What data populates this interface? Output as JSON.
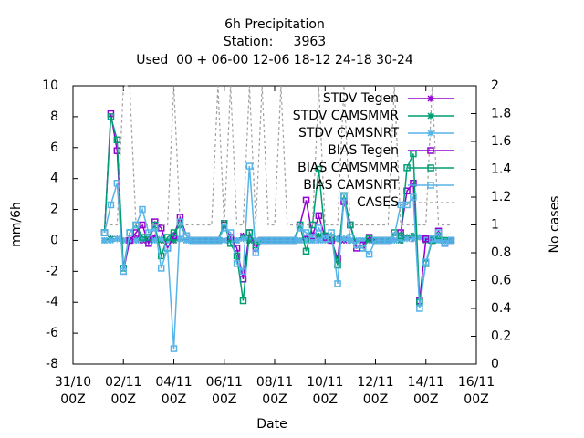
{
  "chart_data": {
    "type": "line",
    "title": [
      "6h Precipitation",
      "Station:     3963",
      "Used  00 + 06-00 12-06 18-12 24-18 30-24"
    ],
    "xlabel": "Date",
    "ylabel": "mm/6h",
    "y2label": "No cases",
    "xlim": [
      0,
      16
    ],
    "xticks": [
      {
        "value": 0,
        "label": [
          "31/10",
          "00Z"
        ]
      },
      {
        "value": 2,
        "label": [
          "02/11",
          "00Z"
        ]
      },
      {
        "value": 4,
        "label": [
          "04/11",
          "00Z"
        ]
      },
      {
        "value": 6,
        "label": [
          "06/11",
          "00Z"
        ]
      },
      {
        "value": 8,
        "label": [
          "08/11",
          "00Z"
        ]
      },
      {
        "value": 10,
        "label": [
          "10/11",
          "00Z"
        ]
      },
      {
        "value": 12,
        "label": [
          "12/11",
          "00Z"
        ]
      },
      {
        "value": 14,
        "label": [
          "14/11",
          "00Z"
        ]
      },
      {
        "value": 16,
        "label": [
          "16/11",
          "00Z"
        ]
      }
    ],
    "ylim": [
      -8,
      10
    ],
    "yticks": [
      -8,
      -6,
      -4,
      -2,
      0,
      2,
      4,
      6,
      8,
      10
    ],
    "y2lim": [
      0,
      2
    ],
    "y2ticks": [
      0,
      0.2,
      0.4,
      0.6,
      0.8,
      1,
      1.2,
      1.4,
      1.6,
      1.8,
      2
    ],
    "grid": false,
    "legend": "top-right",
    "x": [
      1.25,
      1.5,
      1.75,
      2.0,
      2.25,
      2.5,
      2.75,
      3.0,
      3.25,
      3.5,
      3.75,
      4.0,
      4.25,
      4.5,
      4.75,
      5.0,
      5.25,
      5.5,
      5.75,
      6.0,
      6.25,
      6.5,
      6.75,
      7.0,
      7.25,
      7.5,
      7.75,
      8.0,
      8.25,
      8.5,
      8.75,
      9.0,
      9.25,
      9.5,
      9.75,
      10.0,
      10.25,
      10.5,
      10.75,
      11.0,
      11.25,
      11.5,
      11.75,
      12.0,
      12.25,
      12.5,
      12.75,
      13.0,
      13.25,
      13.5,
      13.75,
      14.0,
      14.25,
      14.5,
      14.75,
      15.0
    ],
    "series": [
      {
        "name": "STDV Tegen",
        "color": "#9400d3",
        "marker": "star",
        "values": [
          0,
          0.1,
          0.1,
          0,
          0,
          0.1,
          0,
          0,
          0.2,
          0,
          0,
          0,
          0.1,
          0,
          0,
          0,
          0,
          0,
          0,
          0,
          0,
          0,
          0.3,
          0,
          0,
          0,
          0,
          0,
          0,
          0,
          0,
          0,
          0.2,
          0,
          0,
          0,
          0,
          0.1,
          0,
          0,
          0,
          0,
          0,
          0,
          0,
          0,
          0,
          0,
          0.2,
          0.1,
          0.2,
          0,
          0,
          0,
          0,
          0
        ]
      },
      {
        "name": "STDV CAMSMMR",
        "color": "#009e73",
        "marker": "star",
        "values": [
          0,
          0.1,
          0.1,
          0,
          0,
          0,
          0.1,
          0,
          0,
          0,
          0,
          0,
          0.1,
          0,
          0,
          0,
          0,
          0,
          0,
          0,
          0,
          0,
          0.2,
          0,
          0,
          0,
          0,
          0,
          0,
          0,
          0,
          0,
          0,
          0,
          0.3,
          0,
          0,
          0.1,
          0.1,
          0,
          0,
          0,
          0,
          0,
          0,
          0,
          0,
          0,
          0.2,
          0.3,
          0.2,
          0,
          0,
          0,
          0,
          0
        ]
      },
      {
        "name": "STDV CAMSNRT",
        "color": "#56b4e9",
        "marker": "star",
        "values": [
          0,
          0,
          0.1,
          0,
          0,
          0,
          0.1,
          0,
          0,
          0.1,
          0,
          0.3,
          0.1,
          0,
          0,
          0,
          0,
          0,
          0,
          0,
          0,
          0,
          0.1,
          0.2,
          0,
          0,
          0,
          0,
          0,
          0,
          0,
          0,
          0,
          0,
          0,
          0,
          0,
          0.1,
          0.1,
          0,
          0,
          0,
          0,
          0,
          0,
          0,
          0,
          0.1,
          0.1,
          0.1,
          0.2,
          0.1,
          0,
          0,
          0,
          0
        ]
      },
      {
        "name": "BIAS Tegen",
        "color": "#9400d3",
        "marker": "square",
        "values": [
          0.5,
          8.2,
          5.8,
          -2,
          0,
          0.5,
          1.0,
          -0.2,
          1.2,
          0.8,
          -0.5,
          0.3,
          1.5,
          0.3,
          0,
          0,
          0,
          0,
          0,
          1.0,
          0.2,
          -0.5,
          -2.5,
          0.5,
          -0.5,
          0,
          0,
          0,
          0,
          0,
          0,
          1.0,
          2.6,
          0.3,
          1.6,
          0.2,
          0,
          -1.2,
          2.5,
          1.0,
          -0.5,
          -0.3,
          0.2,
          0,
          0,
          0,
          0.3,
          0.5,
          3.2,
          3.7,
          -3.9,
          0.1,
          0,
          0.6,
          -0.2,
          0
        ]
      },
      {
        "name": "BIAS CAMSMMR",
        "color": "#009e73",
        "marker": "square",
        "values": [
          0.5,
          8.0,
          6.5,
          -1.8,
          0.5,
          1.0,
          0.2,
          0.2,
          1.0,
          -1.0,
          0.2,
          0.5,
          1.0,
          0.3,
          0,
          0,
          0,
          0,
          0,
          1.1,
          -0.2,
          -1.0,
          -3.9,
          0.5,
          -0.3,
          0,
          0,
          0,
          0,
          0,
          0,
          1.0,
          -0.7,
          1.0,
          4.6,
          0.3,
          0.2,
          -1.6,
          2.9,
          1.0,
          -0.3,
          -0.5,
          0.1,
          0,
          0,
          0,
          0.5,
          0.3,
          4.7,
          5.6,
          -4.0,
          -1.5,
          0,
          0.3,
          0,
          0
        ]
      },
      {
        "name": "BIAS CAMSNRT",
        "color": "#56b4e9",
        "marker": "square",
        "values": [
          0.5,
          2.3,
          3.7,
          -2,
          0.5,
          1.0,
          2.0,
          0.5,
          0.8,
          -1.8,
          -0.5,
          -7.0,
          1.2,
          0.3,
          0,
          0,
          0,
          0,
          0,
          0.8,
          0.5,
          -1.5,
          -2.0,
          4.8,
          -0.8,
          0,
          0,
          0,
          0,
          0,
          0,
          0.8,
          0.5,
          0.2,
          0.8,
          0.1,
          0.5,
          -2.8,
          2.8,
          0.2,
          -0.3,
          -0.5,
          -0.9,
          0,
          0,
          0,
          0.3,
          2.3,
          2.3,
          2.8,
          -4.4,
          -1.4,
          0.1,
          0.5,
          -0.2,
          0
        ]
      },
      {
        "name": "CASES",
        "color": "#a0a0a0",
        "marker": "none",
        "dash": true,
        "axis": "y2",
        "values": [
          1,
          1,
          1,
          2,
          2,
          1,
          1,
          1,
          1,
          1,
          1,
          2,
          1,
          1,
          1,
          1,
          1,
          1,
          2,
          1,
          2,
          1,
          1,
          2,
          1,
          2,
          1,
          1,
          2,
          1,
          1,
          1,
          1,
          1,
          2,
          1,
          1,
          1,
          2,
          1,
          1,
          1,
          1,
          1,
          1,
          1,
          2,
          1,
          1,
          1,
          1,
          1,
          2,
          1,
          1,
          1
        ]
      }
    ]
  }
}
